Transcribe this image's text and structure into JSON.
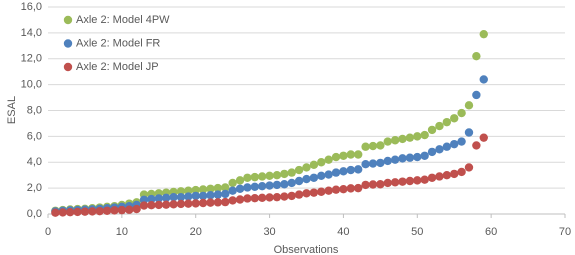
{
  "chart_data": {
    "type": "scatter",
    "x_label": "Observations",
    "y_label": "ESAL",
    "x": [
      1,
      2,
      3,
      4,
      5,
      6,
      7,
      8,
      9,
      10,
      11,
      12,
      13,
      14,
      15,
      16,
      17,
      18,
      19,
      20,
      21,
      22,
      23,
      24,
      25,
      26,
      27,
      28,
      29,
      30,
      31,
      32,
      33,
      34,
      35,
      36,
      37,
      38,
      39,
      40,
      41,
      42,
      43,
      44,
      45,
      46,
      47,
      48,
      49,
      50,
      51,
      52,
      53,
      54,
      55,
      56,
      57,
      58,
      59
    ],
    "series": [
      {
        "name": "Axle 2: Model 4PW",
        "color": "#9bbb59",
        "values": [
          0.25,
          0.3,
          0.35,
          0.38,
          0.4,
          0.45,
          0.5,
          0.55,
          0.6,
          0.7,
          0.8,
          0.9,
          1.5,
          1.55,
          1.6,
          1.65,
          1.7,
          1.75,
          1.8,
          1.85,
          1.9,
          1.95,
          2.0,
          2.05,
          2.4,
          2.6,
          2.8,
          2.85,
          2.9,
          2.95,
          3.0,
          3.1,
          3.2,
          3.4,
          3.6,
          3.8,
          4.0,
          4.2,
          4.4,
          4.5,
          4.6,
          4.6,
          5.2,
          5.25,
          5.3,
          5.6,
          5.7,
          5.8,
          5.9,
          6.0,
          6.1,
          6.5,
          6.8,
          7.1,
          7.4,
          7.8,
          8.4,
          12.2,
          13.9
        ]
      },
      {
        "name": "Axle 2: Model FR",
        "color": "#4f81bd",
        "values": [
          0.2,
          0.25,
          0.28,
          0.3,
          0.33,
          0.36,
          0.4,
          0.45,
          0.5,
          0.55,
          0.6,
          0.7,
          1.1,
          1.15,
          1.2,
          1.25,
          1.3,
          1.3,
          1.35,
          1.4,
          1.4,
          1.45,
          1.5,
          1.55,
          1.8,
          1.95,
          2.05,
          2.1,
          2.15,
          2.2,
          2.25,
          2.3,
          2.4,
          2.55,
          2.7,
          2.8,
          2.95,
          3.05,
          3.2,
          3.3,
          3.4,
          3.45,
          3.85,
          3.9,
          3.95,
          4.1,
          4.2,
          4.3,
          4.35,
          4.4,
          4.5,
          4.8,
          5.0,
          5.2,
          5.4,
          5.6,
          6.3,
          9.2,
          10.4
        ]
      },
      {
        "name": "Axle 2: Model JP",
        "color": "#c0504d",
        "values": [
          0.1,
          0.12,
          0.14,
          0.16,
          0.18,
          0.2,
          0.22,
          0.25,
          0.28,
          0.3,
          0.33,
          0.38,
          0.65,
          0.68,
          0.7,
          0.72,
          0.75,
          0.78,
          0.8,
          0.82,
          0.85,
          0.88,
          0.9,
          0.92,
          1.05,
          1.12,
          1.2,
          1.22,
          1.25,
          1.28,
          1.3,
          1.35,
          1.4,
          1.5,
          1.6,
          1.65,
          1.72,
          1.8,
          1.88,
          1.92,
          1.98,
          2.0,
          2.25,
          2.28,
          2.3,
          2.4,
          2.45,
          2.5,
          2.55,
          2.6,
          2.65,
          2.8,
          2.9,
          3.0,
          3.1,
          3.25,
          3.6,
          5.3,
          5.9
        ]
      }
    ],
    "xlim": [
      0,
      70
    ],
    "xticks": [
      0,
      10,
      20,
      30,
      40,
      50,
      60,
      70
    ],
    "ylim": [
      0,
      16
    ],
    "yticks": [
      {
        "value": 0,
        "label": "0,0"
      },
      {
        "value": 2,
        "label": "2,0"
      },
      {
        "value": 4,
        "label": "4,0"
      },
      {
        "value": 6,
        "label": "6,0"
      },
      {
        "value": 8,
        "label": "8,0"
      },
      {
        "value": 10,
        "label": "10,0"
      },
      {
        "value": 12,
        "label": "12,0"
      },
      {
        "value": 14,
        "label": "14,0"
      },
      {
        "value": 16,
        "label": "16,0"
      }
    ],
    "grid": true,
    "legend": "upper-left"
  }
}
